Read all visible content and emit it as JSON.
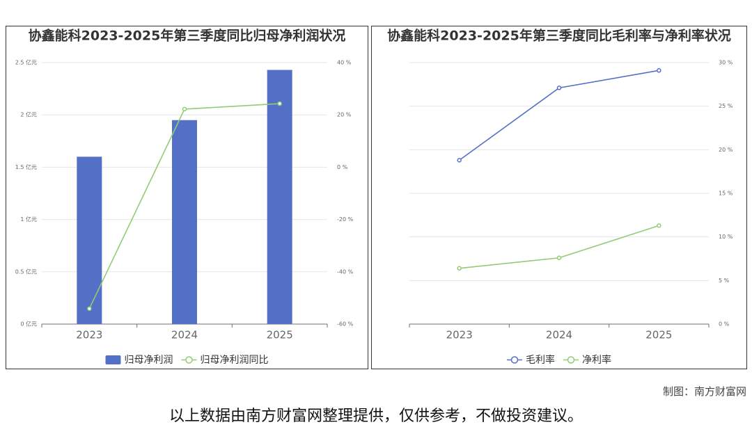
{
  "chart_data": [
    {
      "type": "bar",
      "title": "协鑫能科2023-2025年第三季度同比归母净利润状况",
      "categories": [
        "2023",
        "2024",
        "2025"
      ],
      "series": [
        {
          "name": "归母净利润",
          "type": "bar",
          "color": "#5470c6",
          "values": [
            1.6,
            1.95,
            2.43
          ]
        },
        {
          "name": "归母净利润同比",
          "type": "line",
          "axis": "y2",
          "color": "#91cc75",
          "values": [
            -54.1,
            22.2,
            24.3
          ]
        }
      ],
      "ylim": [
        0,
        2.5
      ],
      "yticks": [
        {
          "value": 0,
          "label": "0 亿元"
        },
        {
          "value": 0.5,
          "label": "0.5 亿元"
        },
        {
          "value": 1,
          "label": "1 亿元"
        },
        {
          "value": 1.5,
          "label": "1.5 亿元"
        },
        {
          "value": 2,
          "label": "2 亿元"
        },
        {
          "value": 2.5,
          "label": "2.5 亿元"
        }
      ],
      "y2lim": [
        -60,
        40
      ],
      "y2ticks": [
        {
          "value": -60,
          "label": "-60 %"
        },
        {
          "value": -40,
          "label": "-40 %"
        },
        {
          "value": -20,
          "label": "-20 %"
        },
        {
          "value": 0,
          "label": "0 %"
        },
        {
          "value": 20,
          "label": "20 %"
        },
        {
          "value": 40,
          "label": "40 %"
        }
      ],
      "grid": true,
      "legend": "bottom"
    },
    {
      "type": "line",
      "title": "协鑫能科2023-2025年第三季度同比毛利率与净利率状况",
      "categories": [
        "2023",
        "2024",
        "2025"
      ],
      "series": [
        {
          "name": "毛利率",
          "color": "#5470c6",
          "axis": "y2",
          "values": [
            18.8,
            27.1,
            29.1
          ]
        },
        {
          "name": "净利率",
          "color": "#91cc75",
          "axis": "y2",
          "values": [
            6.4,
            7.6,
            11.3
          ]
        }
      ],
      "y2lim": [
        0,
        30
      ],
      "y2ticks": [
        {
          "value": 0,
          "label": "0 %"
        },
        {
          "value": 5,
          "label": "5 %"
        },
        {
          "value": 10,
          "label": "10 %"
        },
        {
          "value": 15,
          "label": "15 %"
        },
        {
          "value": 20,
          "label": "20 %"
        },
        {
          "value": 25,
          "label": "25 %"
        },
        {
          "value": 30,
          "label": "30 %"
        }
      ],
      "grid": true,
      "legend": "bottom"
    }
  ],
  "footer": {
    "credit": "制图：南方财富网",
    "note": "以上数据由南方财富网整理提供，仅供参考，不做投资建议。"
  }
}
